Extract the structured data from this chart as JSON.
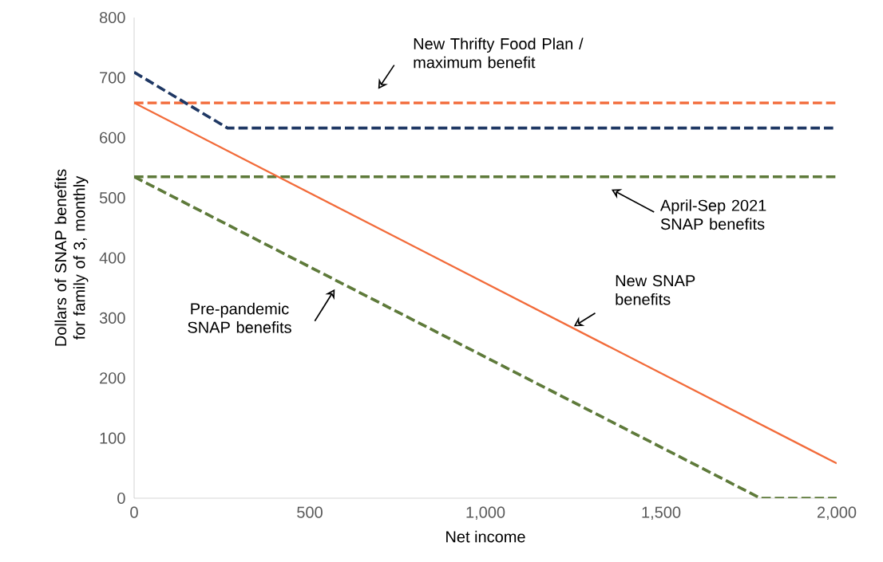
{
  "chart_data": {
    "type": "line",
    "xlabel": "Net income",
    "ylabel": "Dollars of SNAP benefits for family of 3, monthly",
    "xlim": [
      0,
      2000
    ],
    "xticks": [
      0,
      500,
      {
        "value": 1000,
        "label": "1,000"
      },
      {
        "value": 1500,
        "label": "1,500"
      },
      {
        "value": 2000,
        "label": "2,000"
      }
    ],
    "ylim": [
      0,
      800
    ],
    "yticks": [
      0,
      100,
      200,
      300,
      400,
      500,
      600,
      700,
      800
    ],
    "grid": false,
    "marker": "none",
    "series": [
      {
        "color": "#f26b3a",
        "line_style": "dashed",
        "x": [
          0,
          2000
        ],
        "values": [
          658,
          658
        ]
      },
      {
        "color": "#1f3864",
        "line_style": "dashed",
        "x": [
          0,
          266,
          2000
        ],
        "values": [
          709,
          616,
          616
        ]
      },
      {
        "color": "#5e7a3a",
        "line_style": "dashed",
        "x": [
          0,
          2000
        ],
        "values": [
          535,
          535
        ]
      },
      {
        "color": "#5e7a3a",
        "line_style": "dashed",
        "x": [
          0,
          1783,
          2000
        ],
        "values": [
          535,
          0,
          0
        ]
      },
      {
        "color": "#f26b3a",
        "line_style": "solid",
        "x": [
          0,
          2000
        ],
        "values": [
          658,
          58
        ]
      }
    ],
    "annotations": [
      "New Thrifty Food Plan / maximum benefit",
      "April-Sep 2021 SNAP benefits",
      "New SNAP benefits",
      "Pre-pandemic SNAP benefits"
    ]
  }
}
